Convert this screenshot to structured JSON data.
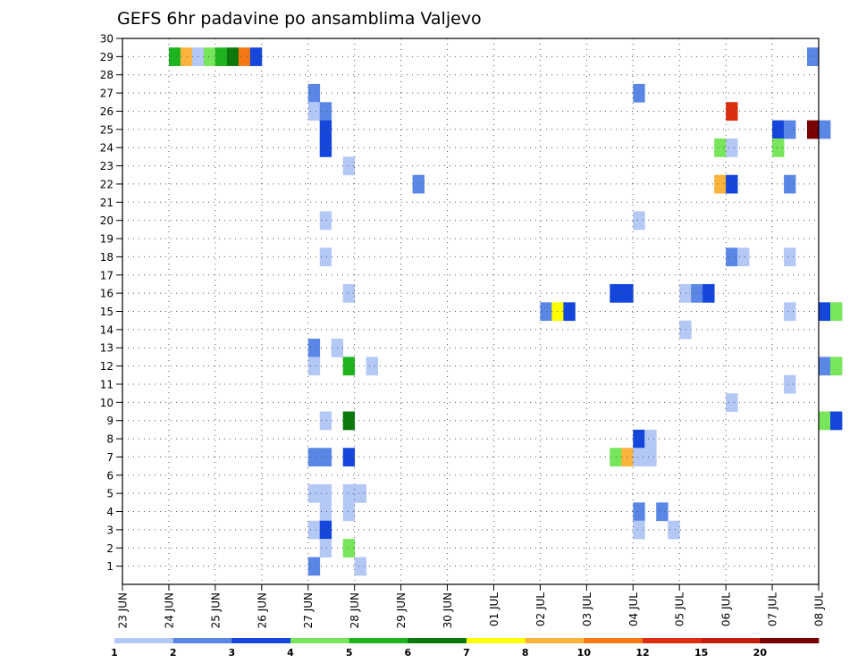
{
  "chart_data": {
    "type": "heatmap",
    "title": "GEFS 6hr padavine po ansamblima Valjevo",
    "x_ticks": [
      "23 JUN",
      "24 JUN",
      "25 JUN",
      "26 JUN",
      "27 JUN",
      "28 JUN",
      "29 JUN",
      "30 JUN",
      "01 JUL",
      "02 JUL",
      "03 JUL",
      "04 JUL",
      "05 JUL",
      "06 JUL",
      "07 JUL",
      "08 JUL"
    ],
    "x_range_days": [
      0,
      15
    ],
    "y_ticks": [
      "1",
      "2",
      "3",
      "4",
      "5",
      "6",
      "7",
      "8",
      "9",
      "10",
      "11",
      "12",
      "13",
      "14",
      "15",
      "16",
      "17",
      "18",
      "19",
      "20",
      "21",
      "22",
      "23",
      "24",
      "25",
      "26",
      "27",
      "28",
      "29",
      "30"
    ],
    "y_range": [
      0,
      30
    ],
    "time_step_hours": 6,
    "grid": true,
    "legend": {
      "placement": "bottom",
      "labels": [
        "1",
        "2",
        "3",
        "4",
        "5",
        "6",
        "7",
        "8",
        "10",
        "12",
        "15",
        "20"
      ],
      "colors": [
        "#b4c8f5",
        "#5a87e6",
        "#1446dc",
        "#78e65a",
        "#1eb41e",
        "#0a780a",
        "#ffff00",
        "#fab43c",
        "#f57814",
        "#dc2d0f",
        "#c31e0a",
        "#780000"
      ]
    },
    "cells": [
      {
        "step": 4,
        "member": 29,
        "level": 4
      },
      {
        "step": 5,
        "member": 29,
        "level": 7
      },
      {
        "step": 6,
        "member": 29,
        "level": 0
      },
      {
        "step": 7,
        "member": 29,
        "level": 3
      },
      {
        "step": 8,
        "member": 29,
        "level": 4
      },
      {
        "step": 9,
        "member": 29,
        "level": 5
      },
      {
        "step": 10,
        "member": 29,
        "level": 8
      },
      {
        "step": 11,
        "member": 29,
        "level": 2
      },
      {
        "step": 59,
        "member": 29,
        "level": 1
      },
      {
        "step": 16,
        "member": 27,
        "level": 1
      },
      {
        "step": 44,
        "member": 27,
        "level": 1
      },
      {
        "step": 16,
        "member": 26,
        "level": 0
      },
      {
        "step": 17,
        "member": 26,
        "level": 1
      },
      {
        "step": 52,
        "member": 26,
        "level": 9
      },
      {
        "step": 17,
        "member": 25,
        "level": 2
      },
      {
        "step": 56,
        "member": 25,
        "level": 2
      },
      {
        "step": 57,
        "member": 25,
        "level": 1
      },
      {
        "step": 59,
        "member": 25,
        "level": 11
      },
      {
        "step": 60,
        "member": 25,
        "level": 1
      },
      {
        "step": 17,
        "member": 24,
        "level": 2
      },
      {
        "step": 51,
        "member": 24,
        "level": 3
      },
      {
        "step": 52,
        "member": 24,
        "level": 0
      },
      {
        "step": 56,
        "member": 24,
        "level": 3
      },
      {
        "step": 19,
        "member": 23,
        "level": 0
      },
      {
        "step": 25,
        "member": 22,
        "level": 1
      },
      {
        "step": 51,
        "member": 22,
        "level": 7
      },
      {
        "step": 52,
        "member": 22,
        "level": 2
      },
      {
        "step": 57,
        "member": 22,
        "level": 1
      },
      {
        "step": 17,
        "member": 20,
        "level": 0
      },
      {
        "step": 44,
        "member": 20,
        "level": 0
      },
      {
        "step": 17,
        "member": 18,
        "level": 0
      },
      {
        "step": 52,
        "member": 18,
        "level": 1
      },
      {
        "step": 53,
        "member": 18,
        "level": 0
      },
      {
        "step": 57,
        "member": 18,
        "level": 0
      },
      {
        "step": 19,
        "member": 16,
        "level": 0
      },
      {
        "step": 42,
        "member": 16,
        "level": 2
      },
      {
        "step": 43,
        "member": 16,
        "level": 2
      },
      {
        "step": 48,
        "member": 16,
        "level": 0
      },
      {
        "step": 49,
        "member": 16,
        "level": 1
      },
      {
        "step": 50,
        "member": 16,
        "level": 2
      },
      {
        "step": 36,
        "member": 15,
        "level": 1
      },
      {
        "step": 37,
        "member": 15,
        "level": 6
      },
      {
        "step": 38,
        "member": 15,
        "level": 2
      },
      {
        "step": 57,
        "member": 15,
        "level": 0
      },
      {
        "step": 60,
        "member": 15,
        "level": 2
      },
      {
        "step": 61,
        "member": 15,
        "level": 3
      },
      {
        "step": 48,
        "member": 14,
        "level": 0
      },
      {
        "step": 16,
        "member": 13,
        "level": 1
      },
      {
        "step": 18,
        "member": 13,
        "level": 0
      },
      {
        "step": 16,
        "member": 12,
        "level": 0
      },
      {
        "step": 19,
        "member": 12,
        "level": 4
      },
      {
        "step": 21,
        "member": 12,
        "level": 0
      },
      {
        "step": 60,
        "member": 12,
        "level": 1
      },
      {
        "step": 61,
        "member": 12,
        "level": 3
      },
      {
        "step": 57,
        "member": 11,
        "level": 0
      },
      {
        "step": 52,
        "member": 10,
        "level": 0
      },
      {
        "step": 17,
        "member": 9,
        "level": 0
      },
      {
        "step": 19,
        "member": 9,
        "level": 5
      },
      {
        "step": 60,
        "member": 9,
        "level": 3
      },
      {
        "step": 61,
        "member": 9,
        "level": 2
      },
      {
        "step": 44,
        "member": 8,
        "level": 2
      },
      {
        "step": 45,
        "member": 8,
        "level": 0
      },
      {
        "step": 16,
        "member": 7,
        "level": 1
      },
      {
        "step": 17,
        "member": 7,
        "level": 1
      },
      {
        "step": 19,
        "member": 7,
        "level": 2
      },
      {
        "step": 42,
        "member": 7,
        "level": 3
      },
      {
        "step": 43,
        "member": 7,
        "level": 7
      },
      {
        "step": 44,
        "member": 7,
        "level": 0
      },
      {
        "step": 45,
        "member": 7,
        "level": 0
      },
      {
        "step": 16,
        "member": 5,
        "level": 0
      },
      {
        "step": 17,
        "member": 5,
        "level": 0
      },
      {
        "step": 19,
        "member": 5,
        "level": 0
      },
      {
        "step": 20,
        "member": 5,
        "level": 0
      },
      {
        "step": 17,
        "member": 4,
        "level": 0
      },
      {
        "step": 19,
        "member": 4,
        "level": 0
      },
      {
        "step": 44,
        "member": 4,
        "level": 1
      },
      {
        "step": 46,
        "member": 4,
        "level": 1
      },
      {
        "step": 16,
        "member": 3,
        "level": 0
      },
      {
        "step": 17,
        "member": 3,
        "level": 2
      },
      {
        "step": 44,
        "member": 3,
        "level": 0
      },
      {
        "step": 47,
        "member": 3,
        "level": 0
      },
      {
        "step": 17,
        "member": 2,
        "level": 0
      },
      {
        "step": 19,
        "member": 2,
        "level": 3
      },
      {
        "step": 16,
        "member": 1,
        "level": 1
      },
      {
        "step": 20,
        "member": 1,
        "level": 0
      }
    ]
  }
}
